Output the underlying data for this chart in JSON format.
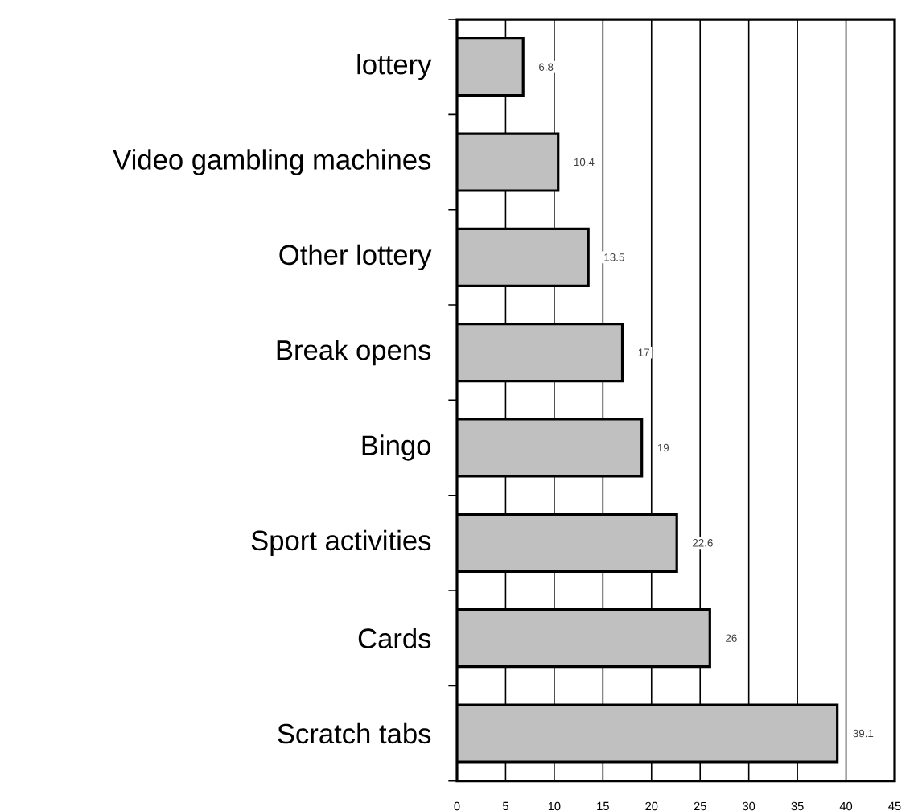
{
  "chart_data": {
    "type": "bar",
    "orientation": "horizontal",
    "categories": [
      "lottery",
      "Video gambling machines",
      "Other lottery",
      "Break opens",
      "Bingo",
      "Sport activities",
      "Cards",
      "Scratch tabs"
    ],
    "values": [
      6.8,
      10.4,
      13.5,
      17,
      19,
      22.6,
      26,
      39.1
    ],
    "color": "#c0c0c0",
    "xlim": [
      0,
      45
    ],
    "xticks": [
      0,
      5,
      10,
      15,
      20,
      25,
      30,
      35,
      40,
      45
    ],
    "grid": "x",
    "data_labels": true
  }
}
